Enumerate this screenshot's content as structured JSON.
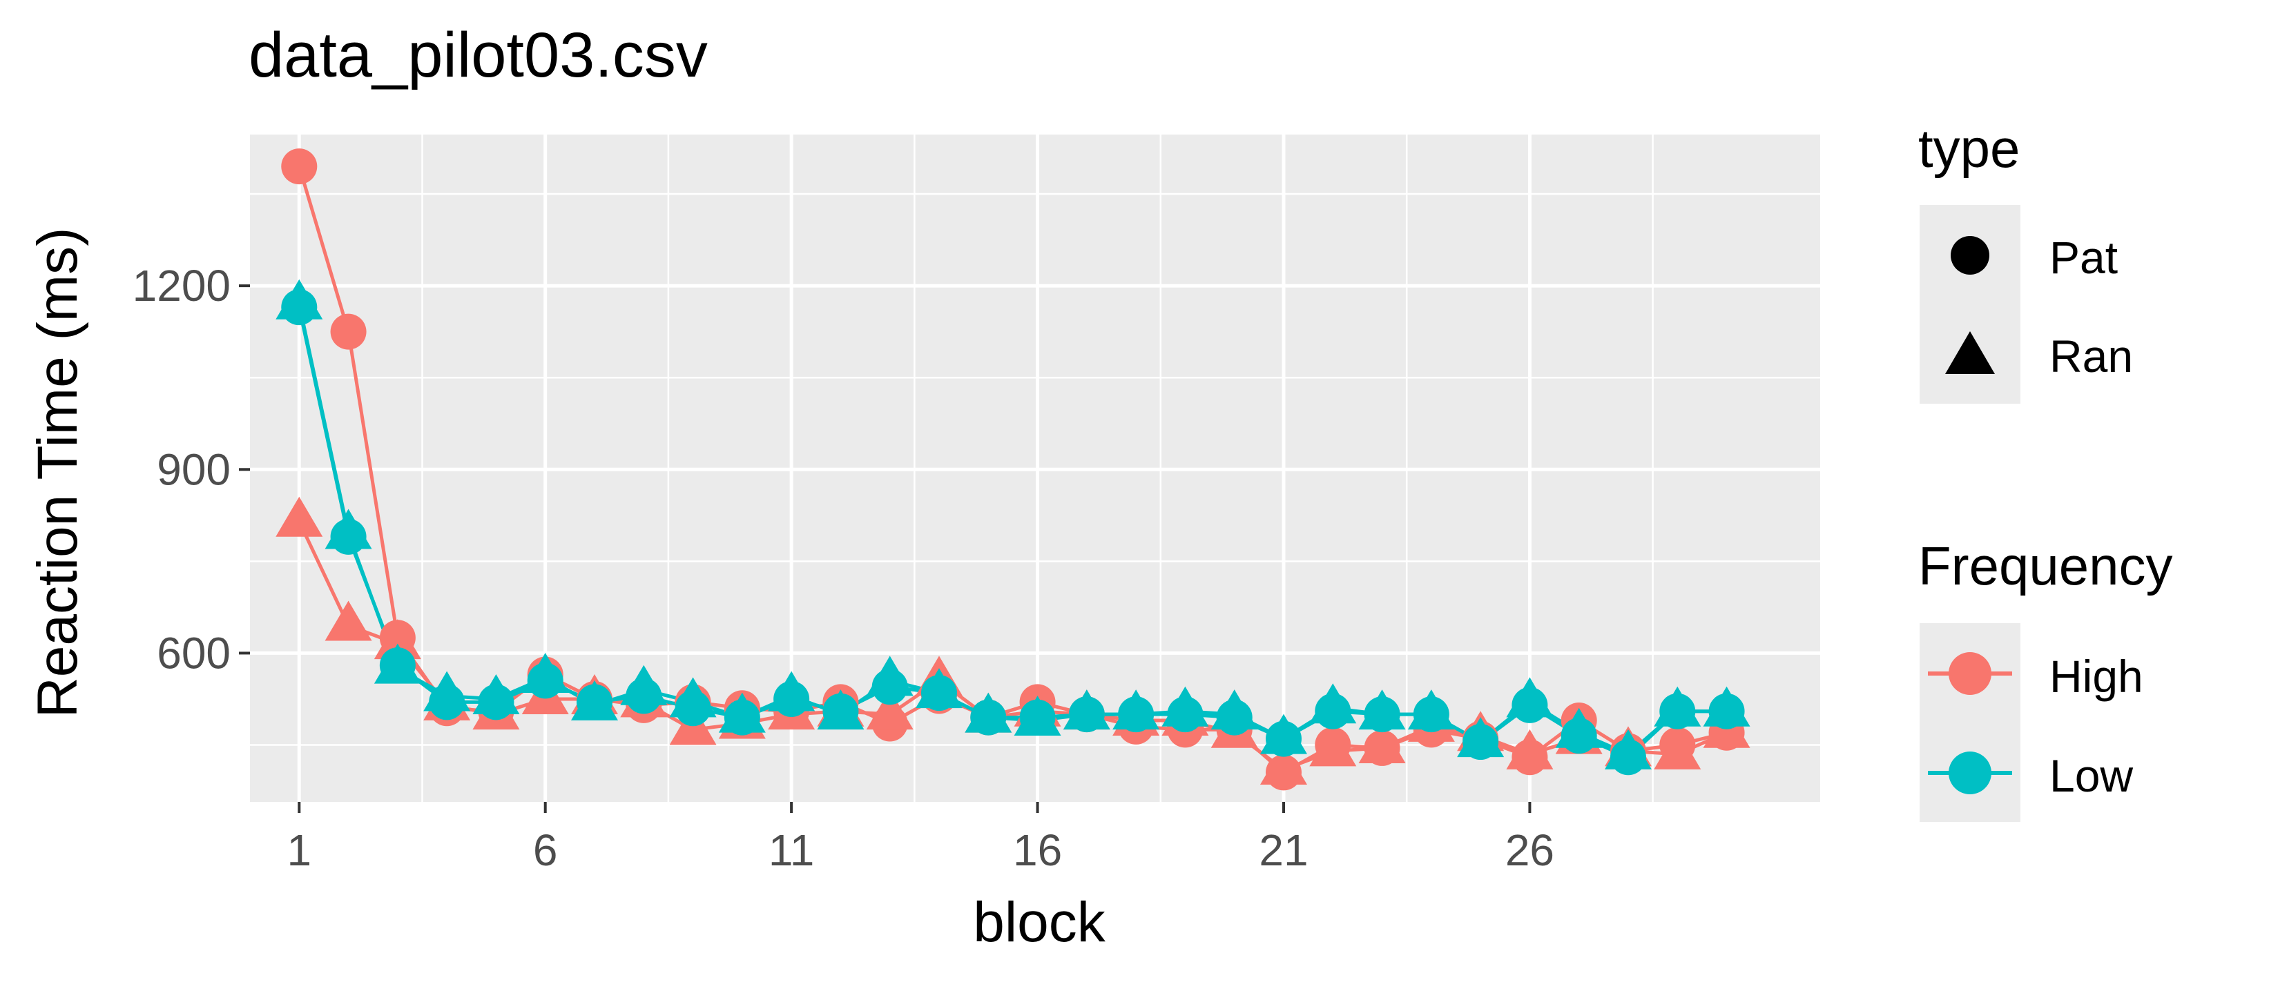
{
  "chart_data": {
    "type": "line",
    "title": "data_pilot03.csv",
    "xlabel": "block",
    "ylabel": "Reaction Time (ms)",
    "xlim": [
      0,
      31.9
    ],
    "ylim": [
      357,
      1447
    ],
    "x_ticks": [
      1,
      6,
      11,
      16,
      21,
      26
    ],
    "x_tick_labels": [
      "1",
      "6",
      "11",
      "16",
      "21",
      "26"
    ],
    "y_ticks": [
      600,
      900,
      1200
    ],
    "y_tick_labels": [
      "600",
      "900",
      "1200"
    ],
    "grid": true,
    "legend": {
      "placement": "right",
      "type": {
        "title": "type",
        "entries": [
          "Pat",
          "Ran"
        ]
      },
      "frequency": {
        "title": "Frequency",
        "entries": [
          "High",
          "Low"
        ]
      }
    },
    "colors": {
      "High": "#F8766D",
      "Low": "#00BFC4"
    },
    "series": [
      {
        "frequency": "High",
        "type": "Pat",
        "shape": "circle",
        "x": [
          1,
          2,
          3,
          4,
          5,
          6,
          7,
          8,
          9,
          10,
          11,
          12,
          13,
          14,
          15,
          16,
          17,
          18,
          19,
          20,
          21,
          22,
          23,
          24,
          25,
          26,
          27,
          28,
          29,
          30
        ],
        "y": [
          1395,
          1125,
          625,
          510,
          505,
          565,
          525,
          515,
          520,
          510,
          505,
          520,
          485,
          530,
          495,
          520,
          500,
          480,
          475,
          475,
          405,
          450,
          445,
          475,
          460,
          430,
          490,
          440,
          450,
          470
        ]
      },
      {
        "frequency": "High",
        "type": "Ran",
        "shape": "triangle",
        "x": [
          1,
          2,
          3,
          4,
          5,
          6,
          7,
          8,
          9,
          10,
          11,
          12,
          13,
          14,
          15,
          16,
          17,
          18,
          19,
          20,
          21,
          22,
          23,
          24,
          25,
          26,
          27,
          28,
          29,
          30
        ],
        "y": [
          815,
          645,
          615,
          515,
          500,
          525,
          525,
          520,
          475,
          485,
          500,
          505,
          500,
          555,
          495,
          505,
          500,
          490,
          490,
          470,
          410,
          440,
          445,
          480,
          465,
          435,
          460,
          440,
          435,
          470
        ]
      },
      {
        "frequency": "Low",
        "type": "Pat",
        "shape": "circle",
        "x": [
          1,
          2,
          3,
          4,
          5,
          6,
          7,
          8,
          9,
          10,
          11,
          12,
          13,
          14,
          15,
          16,
          17,
          18,
          19,
          20,
          21,
          22,
          23,
          24,
          25,
          26,
          27,
          28,
          29,
          30
        ],
        "y": [
          1165,
          790,
          580,
          520,
          520,
          555,
          520,
          530,
          510,
          495,
          525,
          505,
          545,
          535,
          495,
          495,
          500,
          500,
          500,
          495,
          460,
          505,
          500,
          500,
          455,
          515,
          465,
          430,
          505,
          505
        ]
      },
      {
        "frequency": "Low",
        "type": "Ran",
        "shape": "triangle",
        "x": [
          1,
          2,
          3,
          4,
          5,
          6,
          7,
          8,
          9,
          10,
          11,
          12,
          13,
          14,
          15,
          16,
          17,
          18,
          19,
          20,
          21,
          22,
          23,
          24,
          25,
          26,
          27,
          28,
          29,
          30
        ],
        "y": [
          1170,
          795,
          575,
          530,
          525,
          560,
          515,
          540,
          520,
          495,
          530,
          500,
          555,
          535,
          495,
          490,
          500,
          500,
          505,
          500,
          460,
          510,
          500,
          500,
          455,
          520,
          470,
          435,
          505,
          505
        ]
      }
    ]
  }
}
